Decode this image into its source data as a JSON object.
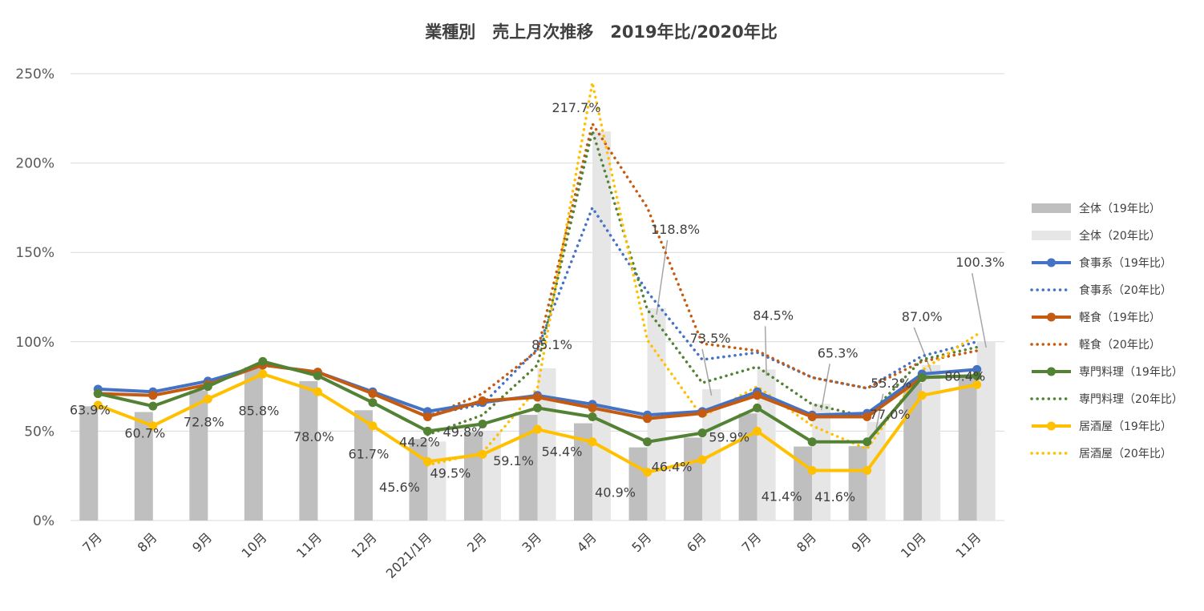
{
  "chart_data": {
    "type": "bar",
    "title": "業種別　売上月次推移　2019年比/2020年比",
    "xlabel": "",
    "ylabel": "",
    "categories": [
      "7月",
      "8月",
      "9月",
      "10月",
      "11月",
      "12月",
      "2021/1月",
      "2月",
      "3月",
      "4月",
      "5月",
      "6月",
      "7月",
      "8月",
      "9月",
      "10月",
      "11月"
    ],
    "yticks": [
      "0%",
      "50%",
      "100%",
      "150%",
      "200%",
      "250%"
    ],
    "ylim": [
      0,
      250
    ],
    "grid": true,
    "legend_position": "right",
    "bar_series": [
      {
        "name": "全体（19年比）",
        "color": "#BFBFBF",
        "values": [
          63.9,
          60.7,
          72.8,
          85.8,
          78.0,
          61.7,
          45.6,
          49.5,
          59.1,
          54.4,
          40.9,
          46.4,
          59.9,
          41.4,
          41.6,
          77.0,
          80.4
        ]
      },
      {
        "name": "全体（20年比）",
        "color": "#E7E6E6",
        "values": [
          null,
          null,
          null,
          null,
          null,
          null,
          44.2,
          49.8,
          85.1,
          217.7,
          118.8,
          73.5,
          84.5,
          65.3,
          55.2,
          87.0,
          100.3
        ]
      }
    ],
    "line_series": [
      {
        "name": "食事系（19年比）",
        "color": "#4472C4",
        "style": "solid",
        "values": [
          73.5,
          72,
          78,
          87,
          83,
          72,
          61,
          66,
          70,
          65,
          59,
          61,
          72,
          59,
          60,
          82,
          84.5
        ]
      },
      {
        "name": "食事系（20年比）",
        "color": "#4472C4",
        "style": "dotted",
        "values": [
          null,
          null,
          null,
          null,
          null,
          null,
          59,
          65,
          96,
          175,
          128,
          90,
          94,
          80,
          74,
          92,
          100
        ]
      },
      {
        "name": "軽食（19年比）",
        "color": "#C55A11",
        "style": "solid",
        "values": [
          71,
          70,
          76,
          87,
          83,
          71,
          58,
          67,
          69,
          63,
          57,
          60,
          70,
          58,
          58,
          80,
          81
        ]
      },
      {
        "name": "軽食（20年比）",
        "color": "#C55A11",
        "style": "dotted",
        "values": [
          null,
          null,
          null,
          null,
          null,
          null,
          58,
          71,
          95,
          222,
          175,
          99,
          95,
          80,
          74,
          89,
          95
        ]
      },
      {
        "name": "専門料理（19年比）",
        "color": "#548235",
        "style": "solid",
        "values": [
          71,
          64,
          75,
          89,
          81,
          66,
          50,
          54,
          63,
          58,
          44,
          49,
          63,
          44,
          44,
          80,
          81
        ]
      },
      {
        "name": "専門料理（20年比）",
        "color": "#548235",
        "style": "dotted",
        "values": [
          null,
          null,
          null,
          null,
          null,
          null,
          48,
          59,
          87,
          218,
          118,
          77,
          86,
          65,
          58,
          90,
          97
        ]
      },
      {
        "name": "居酒屋（19年比）",
        "color": "#FFC000",
        "style": "solid",
        "values": [
          64.5,
          53,
          68,
          82,
          72,
          53,
          33,
          37,
          51,
          44,
          27,
          34,
          50,
          28,
          28,
          70,
          76
        ]
      },
      {
        "name": "居酒屋（20年比）",
        "color": "#FFC000",
        "style": "dotted",
        "values": [
          null,
          null,
          null,
          null,
          null,
          null,
          31,
          38,
          74,
          245,
          101,
          58,
          75,
          53,
          40,
          84,
          104
        ]
      }
    ],
    "data_labels_19": [
      "63.9%",
      "60.7%",
      "72.8%",
      "85.8%",
      "78.0%",
      "61.7%",
      "45.6%",
      "49.5%",
      "59.1%",
      "54.4%",
      "40.9%",
      "46.4%",
      "59.9%",
      "41.4%",
      "41.6%",
      "77.0%",
      "80.4%"
    ],
    "data_labels_20": [
      null,
      null,
      null,
      null,
      null,
      null,
      "44.2%",
      "49.8%",
      "85.1%",
      "217.7%",
      "118.8%",
      "73.5%",
      "84.5%",
      "65.3%",
      "55.2%",
      "87.0%",
      "100.3%"
    ]
  }
}
